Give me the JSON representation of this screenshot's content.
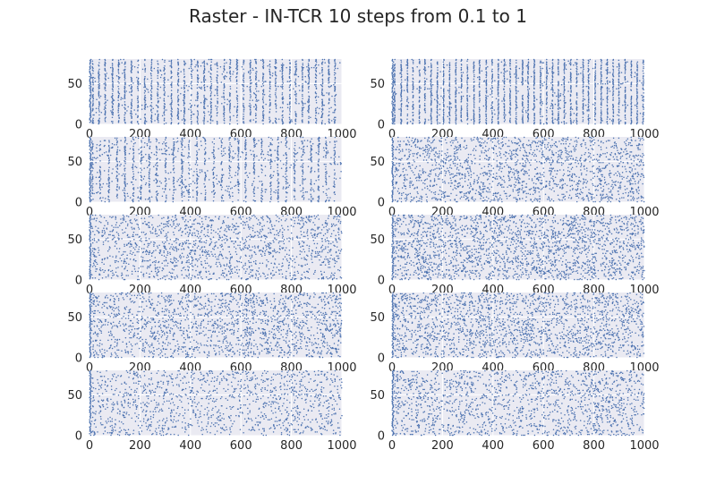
{
  "chart_data": {
    "type": "scatter",
    "title": "Raster - IN-TCR 10 steps from 0.1 to 1",
    "layout": "5 rows x 2 columns",
    "style": "seaborn-darkgrid",
    "grid": true,
    "background_color": "#EAEAF2",
    "marker_color": "#4C72B0",
    "marker": "dot",
    "xlim": [
      0,
      1000
    ],
    "ylim": [
      0,
      80
    ],
    "xticks": [
      0,
      200,
      400,
      600,
      800,
      1000
    ],
    "yticks": [
      0,
      50
    ],
    "neuron_count": 80,
    "panels": [
      {
        "pattern": "vertical-bands",
        "band_period": 26,
        "band_jitter": 4,
        "band_fill": 0.55,
        "extra_rate": 0.004,
        "early_burst": 1
      },
      {
        "pattern": "vertical-bands",
        "band_period": 24,
        "band_jitter": 3,
        "band_fill": 0.6,
        "extra_rate": 0.003,
        "early_burst": 1
      },
      {
        "pattern": "vertical-bands",
        "band_period": 32,
        "band_jitter": 5,
        "band_fill": 0.45,
        "extra_rate": 0.006,
        "early_burst": 1
      },
      {
        "pattern": "sparse",
        "band_period": 0,
        "band_jitter": 0,
        "band_fill": 0,
        "extra_rate": 0.022,
        "early_burst": 1
      },
      {
        "pattern": "sparse",
        "band_period": 0,
        "band_jitter": 0,
        "band_fill": 0,
        "extra_rate": 0.02,
        "early_burst": 1
      },
      {
        "pattern": "sparse",
        "band_period": 0,
        "band_jitter": 0,
        "band_fill": 0,
        "extra_rate": 0.026,
        "early_burst": 1
      },
      {
        "pattern": "sparse",
        "band_period": 0,
        "band_jitter": 0,
        "band_fill": 0,
        "extra_rate": 0.022,
        "early_burst": 1
      },
      {
        "pattern": "sparse",
        "band_period": 0,
        "band_jitter": 0,
        "band_fill": 0,
        "extra_rate": 0.024,
        "early_burst": 1
      },
      {
        "pattern": "sparse",
        "band_period": 0,
        "band_jitter": 0,
        "band_fill": 0,
        "extra_rate": 0.016,
        "early_burst": 1
      },
      {
        "pattern": "sparse",
        "band_period": 0,
        "band_jitter": 0,
        "band_fill": 0,
        "extra_rate": 0.02,
        "early_burst": 1
      }
    ]
  }
}
